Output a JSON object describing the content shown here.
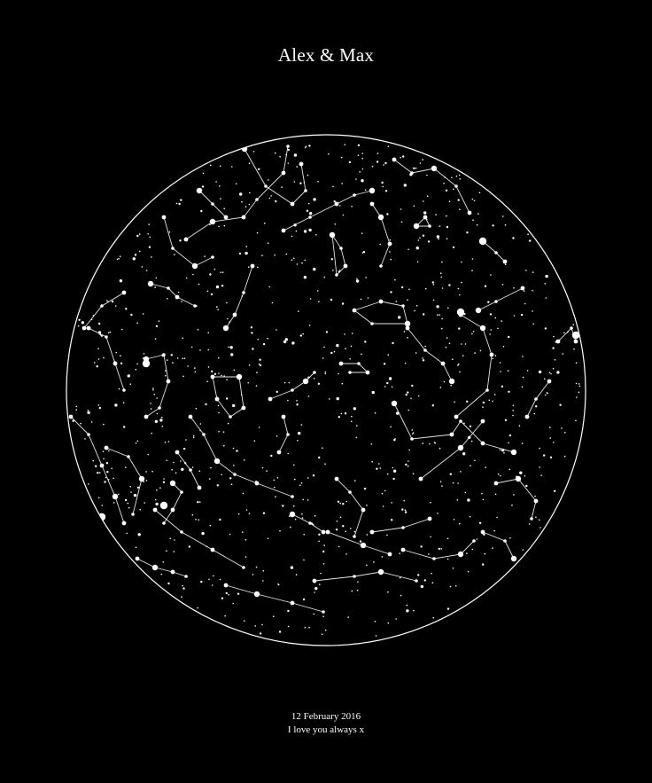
{
  "poster": {
    "title": "Alex & Max",
    "date": "12 February 2016",
    "message": "I love you always x"
  },
  "colors": {
    "background": "#000000",
    "foreground": "#ffffff",
    "lines": "#e6e6e6"
  }
}
